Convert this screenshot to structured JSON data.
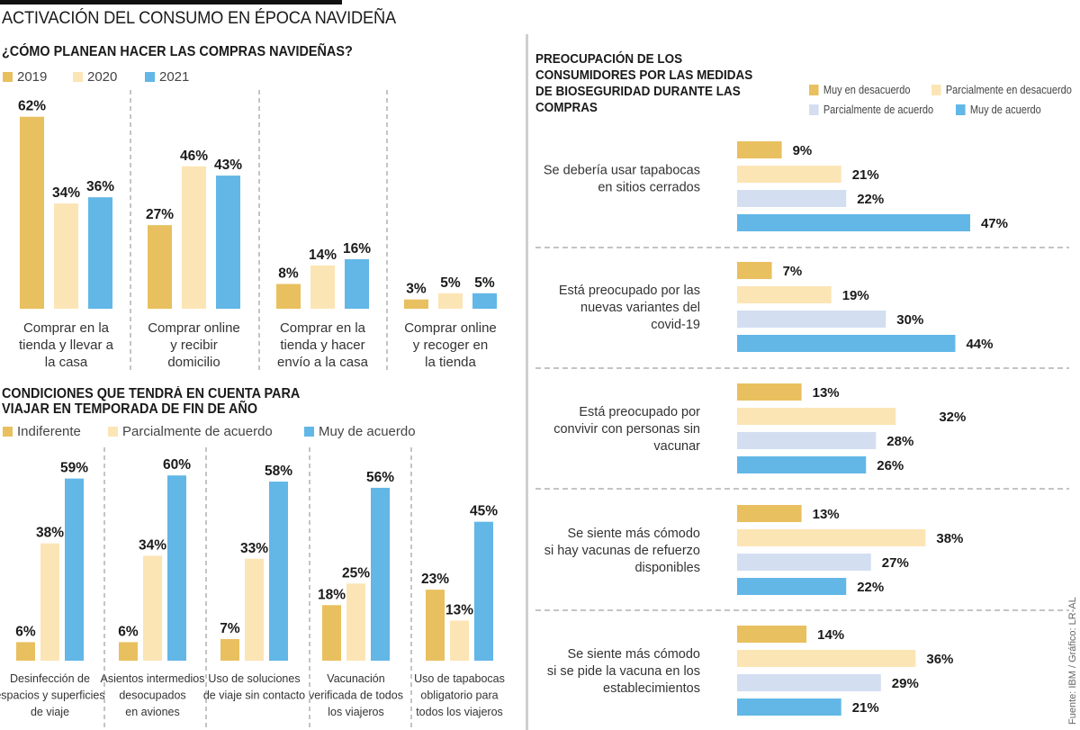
{
  "header": {
    "title": "ACTIVACIÓN DEL CONSUMO EN ÉPOCA NAVIDEÑA"
  },
  "colors": {
    "gold": "#E9C05F",
    "light_gold": "#FCE5B5",
    "light_blue": "#D3DEF1",
    "blue": "#62B7E7",
    "divider": "#888888"
  },
  "source": "Fuente: IBM / Gráfico: LR-AL",
  "chart_data": [
    {
      "id": "compras",
      "type": "bar",
      "title": "¿CÓMO PLANEAN HACER LAS COMPRAS NAVIDEÑAS?",
      "xlabel": "",
      "ylabel": "",
      "unit": "%",
      "ylim": [
        0,
        62
      ],
      "grid": false,
      "legend_position": "top-left",
      "categories": [
        [
          "Comprar en la",
          "tienda y llevar a",
          "la casa"
        ],
        [
          "Comprar online",
          "y recibir",
          "domicilio"
        ],
        [
          "Comprar en la",
          "tienda y hacer",
          "envío a la casa"
        ],
        [
          "Comprar online",
          "y recoger en",
          "la tienda"
        ]
      ],
      "series": [
        {
          "name": "2019",
          "color": "#E9C05F",
          "values": [
            62,
            27,
            8,
            3
          ]
        },
        {
          "name": "2020",
          "color": "#FCE5B5",
          "values": [
            34,
            46,
            14,
            5
          ]
        },
        {
          "name": "2021",
          "color": "#62B7E7",
          "values": [
            36,
            43,
            16,
            5
          ]
        }
      ]
    },
    {
      "id": "viajar",
      "type": "bar",
      "title": [
        "CONDICIONES QUE TENDRÁ EN CUENTA PARA",
        "VIAJAR EN TEMPORADA DE FIN DE AÑO"
      ],
      "xlabel": "",
      "ylabel": "",
      "unit": "%",
      "ylim": [
        0,
        60
      ],
      "grid": false,
      "legend_position": "top-left",
      "categories": [
        [
          "Desinfección de",
          "espacios y superficies",
          "de viaje"
        ],
        [
          "Asientos intermedios",
          "desocupados",
          "en aviones"
        ],
        [
          "Uso de soluciones",
          "de viaje sin contacto"
        ],
        [
          "Vacunación",
          "verificada de todos",
          "los viajeros"
        ],
        [
          "Uso de tapabocas",
          "obligatorio para",
          "todos los viajeros"
        ]
      ],
      "series": [
        {
          "name": "Indiferente",
          "color": "#E9C05F",
          "values": [
            6,
            6,
            7,
            18,
            23
          ]
        },
        {
          "name": "Parcialmente de acuerdo",
          "color": "#FCE5B5",
          "values": [
            38,
            34,
            33,
            25,
            13
          ]
        },
        {
          "name": "Muy de acuerdo",
          "color": "#62B7E7",
          "values": [
            59,
            60,
            58,
            56,
            45
          ]
        }
      ]
    },
    {
      "id": "bioseguridad",
      "type": "bar",
      "orientation": "horizontal",
      "title": [
        "PREOCUPACIÓN DE LOS",
        "CONSUMIDORES POR LAS MEDIDAS",
        "DE BIOSEGURIDAD DURANTE LAS",
        "COMPRAS"
      ],
      "xlabel": "",
      "ylabel": "",
      "unit": "%",
      "xlim": [
        0,
        47
      ],
      "grid": false,
      "legend_position": "top-right",
      "categories": [
        [
          "Se debería usar tapabocas",
          "en sitios cerrados"
        ],
        [
          "Está preocupado por las",
          "nuevas variantes del",
          "covid-19"
        ],
        [
          "Está preocupado por",
          "convivir con personas sin",
          "vacunar"
        ],
        [
          "Se siente más cómodo",
          "si hay vacunas de refuerzo",
          "disponibles"
        ],
        [
          "Se siente más cómodo",
          "si se pide la vacuna en los",
          "establecimientos"
        ]
      ],
      "series": [
        {
          "name": "Muy en desacuerdo",
          "color": "#E9C05F",
          "values": [
            9,
            7,
            13,
            13,
            14
          ]
        },
        {
          "name": "Parcialmente en desacuerdo",
          "color": "#FCE5B5",
          "values": [
            21,
            19,
            32,
            38,
            36
          ]
        },
        {
          "name": "Parcialmente de acuerdo",
          "color": "#D3DEF1",
          "values": [
            22,
            30,
            28,
            27,
            29
          ]
        },
        {
          "name": "Muy de acuerdo",
          "color": "#62B7E7",
          "values": [
            47,
            44,
            26,
            22,
            21
          ]
        }
      ]
    }
  ]
}
